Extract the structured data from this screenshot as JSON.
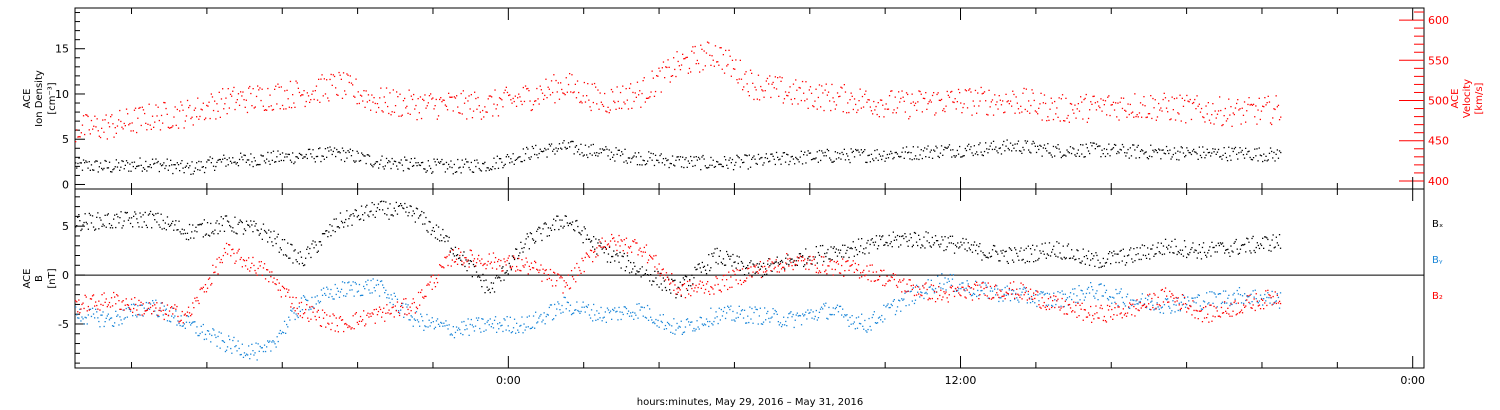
{
  "xlabel": "hours:minutes, May 29, 2016 – May 31, 2016",
  "x_ticks": [
    {
      "label": "0:00",
      "h": 0
    },
    {
      "label": "12:00",
      "h": 12
    },
    {
      "label": "0:00",
      "h": 24
    }
  ],
  "colors": {
    "black": "#000000",
    "red": "#ff0000",
    "blue": "#1a86d8",
    "axis": "#000000"
  },
  "chart_data": [
    {
      "type": "scatter",
      "name": "top-panel",
      "x_range_hours": [
        -11.5,
        24.3
      ],
      "ylabel_left": [
        "ACE",
        "Ion Density",
        "[cm⁻³]"
      ],
      "ylabel_right": [
        "ACE",
        "Velocity",
        "[km/s]"
      ],
      "ylim_left": [
        -0.5,
        19.5
      ],
      "yticks_left": [
        0,
        5,
        10,
        15
      ],
      "ylim_right": [
        390,
        615
      ],
      "yticks_right": [
        400,
        450,
        500,
        550,
        600
      ],
      "series": [
        {
          "axis": "left",
          "color": "black",
          "x": [
            -11.5,
            -10.5,
            -9.5,
            -8.5,
            -7.5,
            -6.5,
            -5.5,
            -4.5,
            -3.5,
            -2.5,
            -1.5,
            -0.5,
            0.5,
            1.5,
            2.5,
            3.5,
            4.5,
            5.5,
            6.5,
            7.5,
            8.5,
            9.5,
            10.5,
            11.5,
            12.5,
            13.5,
            14.5,
            15.5,
            16.5,
            17.5,
            18.5,
            19.5,
            20.5
          ],
          "y": [
            2.2,
            2.0,
            2.4,
            1.8,
            2.7,
            2.9,
            3.2,
            3.5,
            2.6,
            2.2,
            2.0,
            2.3,
            3.5,
            4.2,
            3.6,
            3.0,
            2.6,
            2.4,
            2.6,
            3.0,
            3.2,
            3.3,
            3.5,
            3.8,
            4.0,
            4.3,
            3.8,
            3.9,
            3.7,
            3.6,
            3.5,
            3.5,
            3.3
          ]
        },
        {
          "axis": "right",
          "color": "red",
          "x": [
            -11.5,
            -10.5,
            -9.5,
            -8.5,
            -7.5,
            -6.5,
            -5.5,
            -4.5,
            -3.5,
            -2.5,
            -1.5,
            -0.5,
            0.5,
            1.5,
            2.5,
            3.5,
            4.5,
            5.5,
            6.5,
            7.5,
            8.5,
            9.5,
            10.5,
            11.5,
            12.5,
            13.5,
            14.5,
            15.5,
            16.5,
            17.5,
            18.5,
            19.5,
            20.5
          ],
          "y": [
            465,
            470,
            480,
            485,
            500,
            505,
            510,
            520,
            500,
            495,
            495,
            495,
            505,
            520,
            500,
            510,
            545,
            560,
            520,
            510,
            505,
            500,
            495,
            500,
            500,
            500,
            490,
            492,
            495,
            492,
            488,
            486,
            490
          ]
        }
      ]
    },
    {
      "type": "scatter",
      "name": "bottom-panel",
      "x_range_hours": [
        -11.5,
        24.3
      ],
      "ylabel_left": [
        "ACE",
        "B",
        "[nT]"
      ],
      "ylim": [
        -9.5,
        8.8
      ],
      "yticks": [
        -5,
        0,
        5
      ],
      "zero_line": true,
      "legend": [
        "Bₓ",
        "Bᵧ",
        "B₂"
      ],
      "series": [
        {
          "name": "Bₓ",
          "color": "black",
          "x": [
            -11.5,
            -10.5,
            -9.5,
            -8.5,
            -7.5,
            -6.5,
            -5.5,
            -4.5,
            -3.5,
            -2.5,
            -1.5,
            -0.5,
            0.5,
            1.5,
            2.5,
            3.5,
            4.5,
            5.5,
            6.5,
            7.5,
            8.5,
            9.5,
            10.5,
            11.5,
            12.5,
            13.5,
            14.5,
            15.5,
            16.5,
            17.5,
            18.5,
            19.5,
            20.5
          ],
          "y": [
            5.5,
            5.6,
            5.8,
            4.5,
            5.3,
            4.5,
            1.5,
            5.5,
            6.8,
            6.4,
            3.0,
            -1.5,
            3.5,
            5.8,
            2.5,
            0.5,
            -1.5,
            2.0,
            0.5,
            1.5,
            2.5,
            3.0,
            3.8,
            3.5,
            2.5,
            2.0,
            2.8,
            1.5,
            2.0,
            3.0,
            2.5,
            3.0,
            3.5
          ]
        },
        {
          "name": "Bᵧ",
          "color": "blue",
          "x": [
            -11.5,
            -10.5,
            -9.5,
            -8.5,
            -7.5,
            -6.5,
            -5.5,
            -4.5,
            -3.5,
            -2.5,
            -1.5,
            -0.5,
            0.5,
            1.5,
            2.5,
            3.5,
            4.5,
            5.5,
            6.5,
            7.5,
            8.5,
            9.5,
            10.5,
            11.5,
            12.5,
            13.5,
            14.5,
            15.5,
            16.5,
            17.5,
            18.5,
            19.5,
            20.5
          ],
          "y": [
            -4.0,
            -4.5,
            -3.0,
            -5.0,
            -7.0,
            -8.0,
            -3.0,
            -1.5,
            -1.0,
            -4.5,
            -5.5,
            -5.0,
            -5.0,
            -3.0,
            -4.0,
            -3.5,
            -5.5,
            -4.0,
            -4.0,
            -4.5,
            -3.5,
            -5.0,
            -2.5,
            -0.5,
            -1.5,
            -2.0,
            -2.5,
            -1.5,
            -2.5,
            -3.0,
            -2.5,
            -2.0,
            -2.5
          ]
        },
        {
          "name": "B₂",
          "color": "red",
          "x": [
            -11.5,
            -10.5,
            -9.5,
            -8.5,
            -7.5,
            -6.5,
            -5.5,
            -4.5,
            -3.5,
            -2.5,
            -1.5,
            -0.5,
            0.5,
            1.5,
            2.5,
            3.5,
            4.5,
            5.5,
            6.5,
            7.5,
            8.5,
            9.5,
            10.5,
            11.5,
            12.5,
            13.5,
            14.5,
            15.5,
            16.5,
            17.5,
            18.5,
            19.5,
            20.5
          ],
          "y": [
            -3.0,
            -2.5,
            -3.5,
            -4.0,
            2.5,
            0.5,
            -3.5,
            -5.0,
            -4.0,
            -3.0,
            2.0,
            1.5,
            1.0,
            -1.0,
            3.5,
            3.0,
            -1.5,
            -1.0,
            0.5,
            1.5,
            1.0,
            0.5,
            -1.0,
            -2.0,
            -1.5,
            -1.5,
            -3.0,
            -4.0,
            -3.5,
            -2.0,
            -4.0,
            -3.0,
            -2.0
          ]
        }
      ]
    }
  ]
}
